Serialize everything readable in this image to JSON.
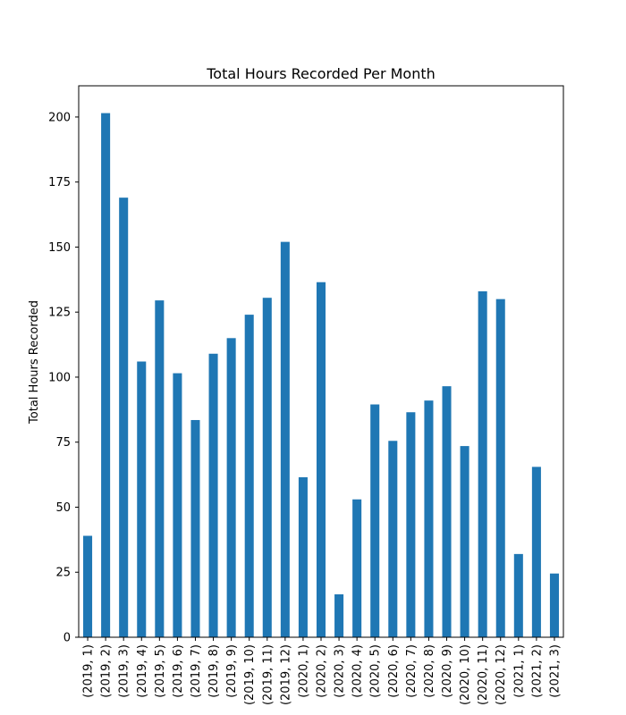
{
  "chart_data": {
    "type": "bar",
    "title": "Total Hours Recorded Per Month",
    "xlabel": "",
    "ylabel": "Total Hours Recorded",
    "ylim": [
      0,
      212
    ],
    "yticks": [
      0,
      25,
      50,
      75,
      100,
      125,
      150,
      175,
      200
    ],
    "grid": false,
    "legend": "none",
    "bar_color": "#1f77b4",
    "categories": [
      "(2019, 1)",
      "(2019, 2)",
      "(2019, 3)",
      "(2019, 4)",
      "(2019, 5)",
      "(2019, 6)",
      "(2019, 7)",
      "(2019, 8)",
      "(2019, 9)",
      "(2019, 10)",
      "(2019, 11)",
      "(2019, 12)",
      "(2020, 1)",
      "(2020, 2)",
      "(2020, 3)",
      "(2020, 4)",
      "(2020, 5)",
      "(2020, 6)",
      "(2020, 7)",
      "(2020, 8)",
      "(2020, 9)",
      "(2020, 10)",
      "(2020, 11)",
      "(2020, 12)",
      "(2021, 1)",
      "(2021, 2)",
      "(2021, 3)"
    ],
    "values": [
      39,
      201.5,
      169,
      106,
      129.5,
      101.5,
      83.5,
      109,
      115,
      124,
      130.5,
      152,
      61.5,
      136.5,
      16.5,
      53,
      89.5,
      75.5,
      86.5,
      91,
      96.5,
      73.5,
      133,
      130,
      32,
      65.5,
      24.5
    ]
  }
}
